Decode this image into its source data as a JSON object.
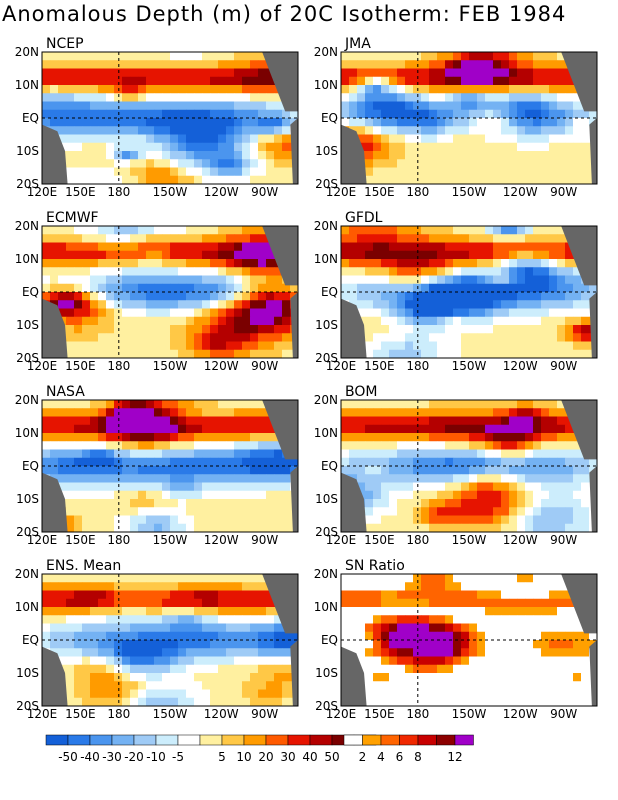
{
  "title": "Anomalous Depth (m) of 20C Isotherm: FEB 1984",
  "colors": {
    "anomaly": [
      "#1460d8",
      "#2a7ae8",
      "#4b95ee",
      "#74b2f3",
      "#9fcbf6",
      "#ccedfc",
      "#ffffff",
      "#fff0a0",
      "#ffc846",
      "#ff9b00",
      "#ff5a00",
      "#e61400",
      "#b40000",
      "#7a0000",
      "#a000c8"
    ],
    "ratio": [
      "#ffffff",
      "#ffa000",
      "#ff6400",
      "#f02800",
      "#c80000",
      "#8c0000",
      "#a000c8"
    ],
    "land": "#666666"
  },
  "chart_data": {
    "type": "heatmap",
    "panels": [
      {
        "name": "NCEP"
      },
      {
        "name": "JMA"
      },
      {
        "name": "ECMWF"
      },
      {
        "name": "GFDL"
      },
      {
        "name": "NASA"
      },
      {
        "name": "BOM"
      },
      {
        "name": "ENS. Mean"
      },
      {
        "name": "SN Ratio"
      }
    ],
    "xaxis": {
      "ticks": [
        "120E",
        "150E",
        "180",
        "150W",
        "120W",
        "90W"
      ],
      "range": [
        "120E",
        "80W"
      ]
    },
    "yaxis": {
      "ticks": [
        "20N",
        "10N",
        "EQ",
        "10S",
        "20S"
      ],
      "range": [
        "20S",
        "20N"
      ]
    },
    "legend_anomaly": {
      "labels": [
        "-50",
        "-40",
        "-30",
        "-20",
        "-10",
        "-5",
        "5",
        "10",
        "20",
        "30",
        "40",
        "50"
      ]
    },
    "legend_ratio": {
      "labels": [
        "2",
        "4",
        "6",
        "8",
        "12"
      ]
    }
  }
}
